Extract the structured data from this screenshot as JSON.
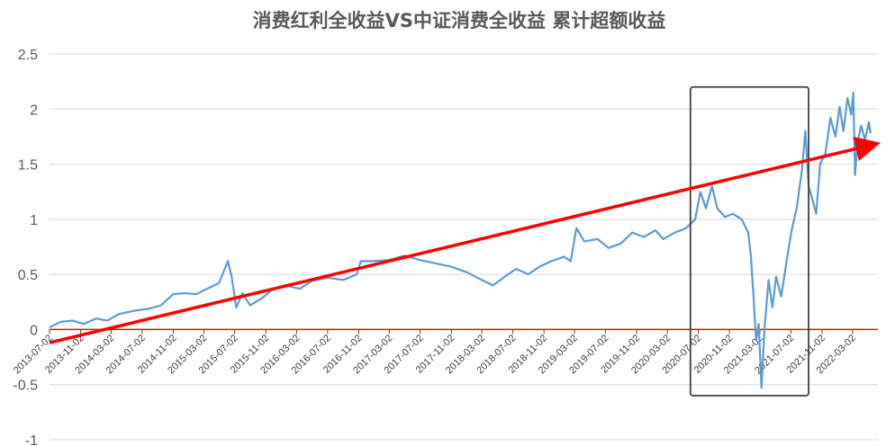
{
  "chart_data": {
    "type": "line",
    "title": "消费红利全收益VS中证消费全收益 累计超额收益",
    "xlabel": "",
    "ylabel": "",
    "ylim": [
      -1,
      2.5
    ],
    "yticks": [
      "2.5",
      "2",
      "1.5",
      "1",
      "0.5",
      "0",
      "-0.5",
      "-1"
    ],
    "grid": "horizontal",
    "legend": "none",
    "x_tick_labels": [
      "2013-07-02",
      "2013-11-02",
      "2014-03-02",
      "2014-07-02",
      "2014-11-02",
      "2015-03-02",
      "2015-07-02",
      "2015-11-02",
      "2016-03-02",
      "2016-07-02",
      "2016-11-02",
      "2017-03-02",
      "2017-07-02",
      "2017-11-02",
      "2018-03-02",
      "2018-07-02",
      "2018-11-02",
      "2019-03-02",
      "2019-07-02",
      "2019-11-02",
      "2020-03-02",
      "2020-07-02",
      "2020-11-02",
      "2021-03-02",
      "2021-07-02",
      "2021-11-02",
      "2022-03-02"
    ],
    "series": [
      {
        "color": "#5b9bd5",
        "points": [
          [
            "2013-07-02",
            0.02
          ],
          [
            "2013-08-15",
            0.07
          ],
          [
            "2013-10-01",
            0.08
          ],
          [
            "2013-11-15",
            0.05
          ],
          [
            "2014-01-01",
            0.1
          ],
          [
            "2014-02-15",
            0.08
          ],
          [
            "2014-04-01",
            0.14
          ],
          [
            "2014-06-01",
            0.17
          ],
          [
            "2014-08-01",
            0.19
          ],
          [
            "2014-09-15",
            0.22
          ],
          [
            "2014-11-01",
            0.32
          ],
          [
            "2014-12-15",
            0.33
          ],
          [
            "2015-02-01",
            0.32
          ],
          [
            "2015-03-15",
            0.37
          ],
          [
            "2015-05-01",
            0.42
          ],
          [
            "2015-06-05",
            0.62
          ],
          [
            "2015-06-20",
            0.48
          ],
          [
            "2015-07-08",
            0.2
          ],
          [
            "2015-08-01",
            0.33
          ],
          [
            "2015-09-01",
            0.22
          ],
          [
            "2015-10-15",
            0.28
          ],
          [
            "2015-12-01",
            0.37
          ],
          [
            "2016-01-15",
            0.4
          ],
          [
            "2016-03-15",
            0.37
          ],
          [
            "2016-05-01",
            0.44
          ],
          [
            "2016-07-01",
            0.47
          ],
          [
            "2016-09-01",
            0.45
          ],
          [
            "2016-10-25",
            0.5
          ],
          [
            "2016-11-10",
            0.62
          ],
          [
            "2017-01-01",
            0.62
          ],
          [
            "2017-03-01",
            0.63
          ],
          [
            "2017-05-01",
            0.67
          ],
          [
            "2017-07-01",
            0.63
          ],
          [
            "2017-09-01",
            0.6
          ],
          [
            "2017-11-01",
            0.57
          ],
          [
            "2018-01-01",
            0.52
          ],
          [
            "2018-03-01",
            0.45
          ],
          [
            "2018-04-15",
            0.4
          ],
          [
            "2018-06-01",
            0.48
          ],
          [
            "2018-07-15",
            0.55
          ],
          [
            "2018-09-01",
            0.5
          ],
          [
            "2018-10-15",
            0.57
          ],
          [
            "2018-12-01",
            0.62
          ],
          [
            "2019-01-20",
            0.66
          ],
          [
            "2019-02-15",
            0.62
          ],
          [
            "2019-03-10",
            0.92
          ],
          [
            "2019-04-10",
            0.8
          ],
          [
            "2019-06-01",
            0.82
          ],
          [
            "2019-07-15",
            0.74
          ],
          [
            "2019-09-01",
            0.78
          ],
          [
            "2019-10-15",
            0.88
          ],
          [
            "2019-12-01",
            0.84
          ],
          [
            "2020-01-15",
            0.9
          ],
          [
            "2020-02-15",
            0.82
          ],
          [
            "2020-04-01",
            0.88
          ],
          [
            "2020-05-15",
            0.92
          ],
          [
            "2020-06-20",
            1.0
          ],
          [
            "2020-07-10",
            1.25
          ],
          [
            "2020-08-01",
            1.1
          ],
          [
            "2020-08-25",
            1.3
          ],
          [
            "2020-09-15",
            1.1
          ],
          [
            "2020-10-15",
            1.02
          ],
          [
            "2020-11-15",
            1.05
          ],
          [
            "2020-12-20",
            1.0
          ],
          [
            "2021-01-15",
            0.88
          ],
          [
            "2021-01-25",
            0.68
          ],
          [
            "2021-02-05",
            0.3
          ],
          [
            "2021-02-15",
            -0.1
          ],
          [
            "2021-02-25",
            0.05
          ],
          [
            "2021-03-08",
            -0.53
          ],
          [
            "2021-03-20",
            0.0
          ],
          [
            "2021-04-05",
            0.45
          ],
          [
            "2021-04-20",
            0.2
          ],
          [
            "2021-05-05",
            0.48
          ],
          [
            "2021-05-25",
            0.3
          ],
          [
            "2021-06-15",
            0.62
          ],
          [
            "2021-07-05",
            0.9
          ],
          [
            "2021-07-25",
            1.1
          ],
          [
            "2021-08-15",
            1.45
          ],
          [
            "2021-08-28",
            1.8
          ],
          [
            "2021-09-10",
            1.3
          ],
          [
            "2021-09-25",
            1.18
          ],
          [
            "2021-10-10",
            1.05
          ],
          [
            "2021-10-25",
            1.5
          ],
          [
            "2021-11-15",
            1.6
          ],
          [
            "2021-12-05",
            1.92
          ],
          [
            "2021-12-25",
            1.75
          ],
          [
            "2022-01-10",
            2.02
          ],
          [
            "2022-01-25",
            1.8
          ],
          [
            "2022-02-10",
            2.1
          ],
          [
            "2022-02-25",
            1.95
          ],
          [
            "2022-03-05",
            2.15
          ],
          [
            "2022-03-12",
            1.4
          ],
          [
            "2022-03-22",
            1.7
          ],
          [
            "2022-04-05",
            1.85
          ],
          [
            "2022-04-20",
            1.72
          ],
          [
            "2022-05-05",
            1.88
          ],
          [
            "2022-05-12",
            1.78
          ]
        ]
      }
    ],
    "annotations": {
      "trend_arrow": {
        "color": "#ff0000",
        "from": [
          "2013-07-02",
          -0.12
        ],
        "to": [
          "2022-06-10",
          1.68
        ]
      },
      "highlight_box": {
        "color": "#404040",
        "x_range": [
          "2020-06-01",
          "2021-09-10"
        ],
        "y_range": [
          -0.6,
          2.2
        ]
      }
    },
    "colors": {
      "zero_line": "#843c0c",
      "grid": "#d9d9d9"
    }
  }
}
